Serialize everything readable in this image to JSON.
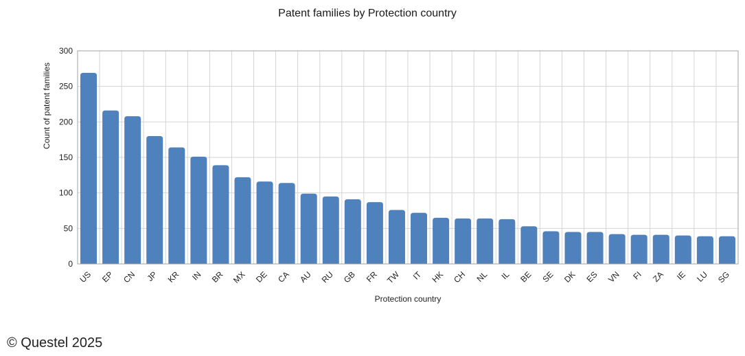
{
  "chart_data": {
    "type": "bar",
    "title": "Patent families by Protection country",
    "xlabel": "Protection country",
    "ylabel": "Count of patent families",
    "ylim": [
      0,
      300
    ],
    "yticks": [
      0,
      50,
      100,
      150,
      200,
      250,
      300
    ],
    "grid": true,
    "bar_color": "#4f81bd",
    "categories": [
      "US",
      "EP",
      "CN",
      "JP",
      "KR",
      "IN",
      "BR",
      "MX",
      "DE",
      "CA",
      "AU",
      "RU",
      "GB",
      "FR",
      "TW",
      "IT",
      "HK",
      "CH",
      "NL",
      "IL",
      "BE",
      "SE",
      "DK",
      "ES",
      "VN",
      "FI",
      "ZA",
      "IE",
      "LU",
      "SG"
    ],
    "values": [
      269,
      216,
      208,
      180,
      164,
      151,
      139,
      122,
      116,
      114,
      99,
      95,
      91,
      87,
      76,
      72,
      65,
      64,
      64,
      63,
      53,
      46,
      45,
      45,
      42,
      41,
      41,
      40,
      39,
      39
    ]
  },
  "footer": {
    "copyright": "© Questel 2025"
  }
}
